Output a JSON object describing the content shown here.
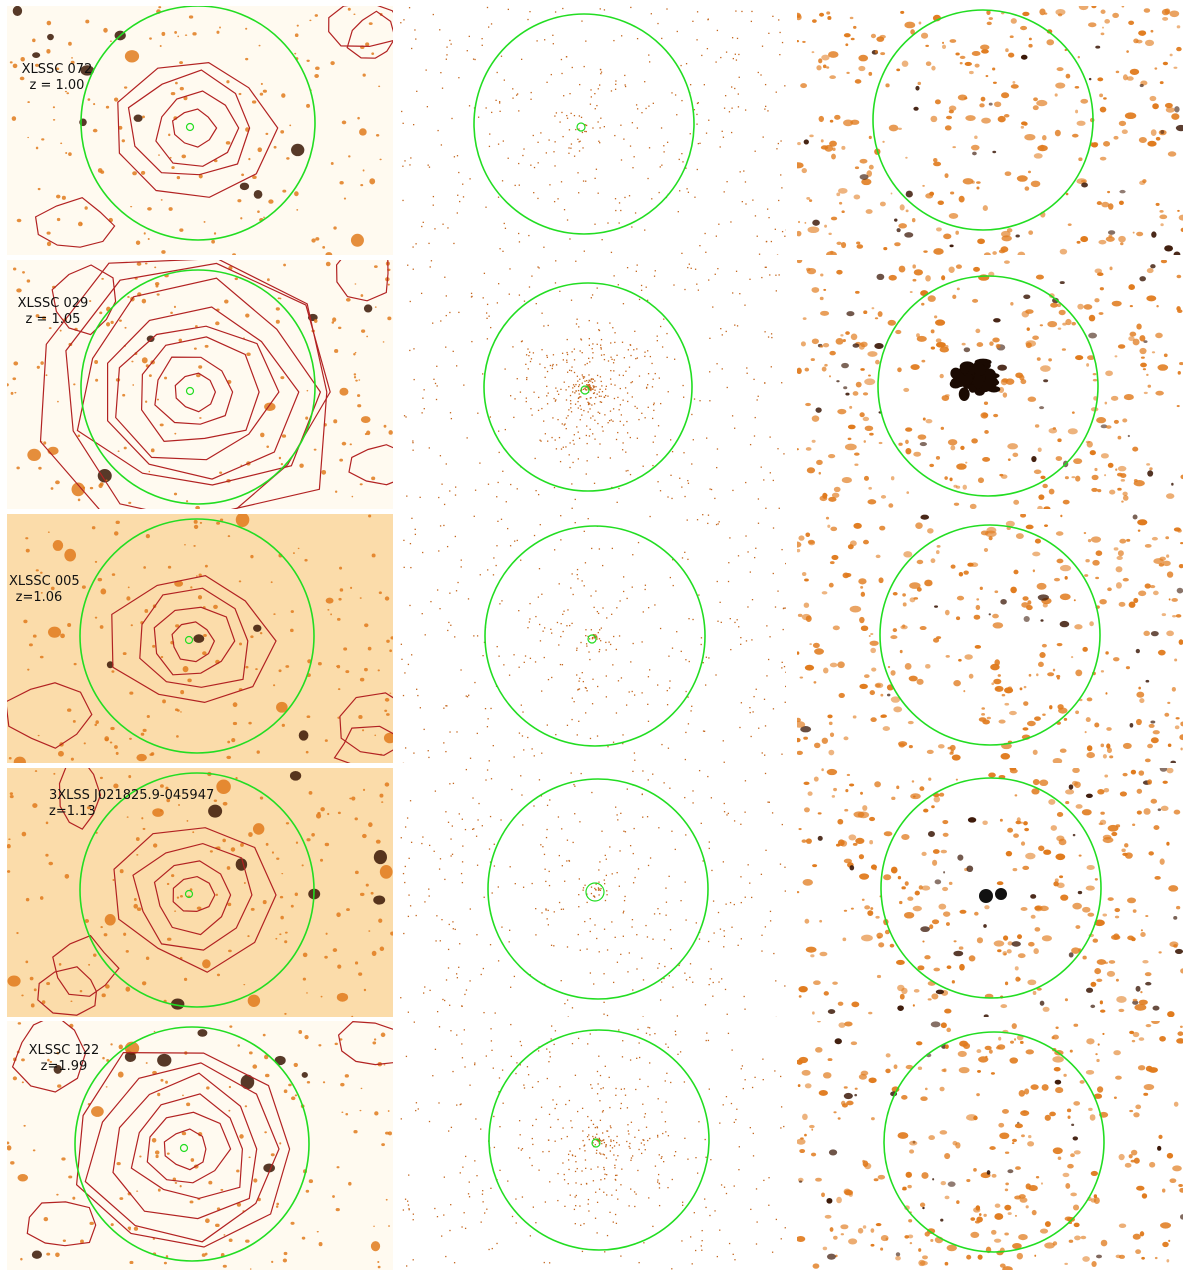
{
  "colors": {
    "aperture": "#22dd22",
    "contour": "#b22222",
    "optical_background": "#fffaf0",
    "tinted_background": "#fbdcaa",
    "source": "#e07a1c",
    "dark_source": "#3a1605",
    "xray_photon": "#c4661d"
  },
  "columns": [
    "optical-contour",
    "xray-counts",
    "xray-smoothed"
  ],
  "clusters": [
    {
      "name": "XLSSC 072",
      "redshift": "z = 1.00",
      "optical_tint": false,
      "richness": 1,
      "core_source": false
    },
    {
      "name": "XLSSC 029",
      "redshift": "z = 1.05",
      "optical_tint": false,
      "richness": 3,
      "core_source": false
    },
    {
      "name": "XLSSC 005",
      "redshift": "z=1.06",
      "optical_tint": true,
      "richness": 1,
      "core_source": false
    },
    {
      "name": "3XLSS J021825.9-045947",
      "redshift": "z=1.13",
      "optical_tint": true,
      "richness": 1,
      "core_source": true
    },
    {
      "name": "XLSSC 122",
      "redshift": "z=1.99",
      "optical_tint": false,
      "richness": 2,
      "core_source": false
    }
  ]
}
